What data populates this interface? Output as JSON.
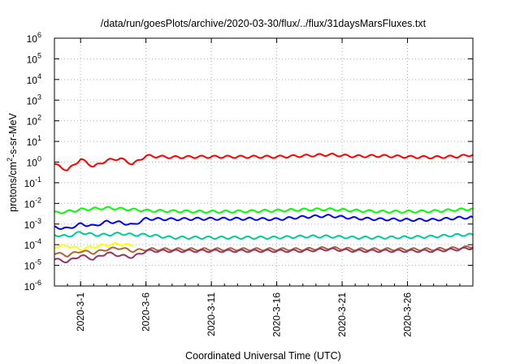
{
  "chart_data": {
    "type": "line",
    "title": "/data/run/goesPlots/archive/2020-03-30/flux/../flux/31daysMarsFluxes.txt",
    "xlabel": "Coordinated Universal Time (UTC)",
    "ylabel": {
      "base": "protons/cm",
      "sup": "2",
      "rest": "-s-sr-MeV"
    },
    "yscale": "log",
    "ylim": [
      1e-06,
      1000000.0
    ],
    "y_ticks": [
      {
        "base": "10",
        "exp": "-6",
        "value": 1e-06
      },
      {
        "base": "10",
        "exp": "-5",
        "value": 1e-05
      },
      {
        "base": "10",
        "exp": "-4",
        "value": 0.0001
      },
      {
        "base": "10",
        "exp": "-3",
        "value": 0.001
      },
      {
        "base": "10",
        "exp": "-2",
        "value": 0.01
      },
      {
        "base": "10",
        "exp": "-1",
        "value": 0.1
      },
      {
        "base": "10",
        "exp": "0",
        "value": 1
      },
      {
        "base": "10",
        "exp": "1",
        "value": 10
      },
      {
        "base": "10",
        "exp": "2",
        "value": 100
      },
      {
        "base": "10",
        "exp": "3",
        "value": 1000
      },
      {
        "base": "10",
        "exp": "4",
        "value": 10000
      },
      {
        "base": "10",
        "exp": "5",
        "value": 100000
      },
      {
        "base": "10",
        "exp": "6",
        "value": 1000000
      }
    ],
    "xlim": [
      "2020-02-28",
      "2020-03-31"
    ],
    "x_ticks": [
      "2020-3-1",
      "2020-3-6",
      "2020-3-11",
      "2020-3-16",
      "2020-3-21",
      "2020-3-26"
    ],
    "x_tick_dates": [
      "2020-03-01",
      "2020-03-06",
      "2020-03-11",
      "2020-03-16",
      "2020-03-21",
      "2020-03-26"
    ],
    "grid": true,
    "series": [
      {
        "color": "#ff0000",
        "x": [
          "2020-02-28",
          "2020-02-29",
          "2020-03-01",
          "2020-03-02",
          "2020-03-03",
          "2020-03-04",
          "2020-03-05",
          "2020-03-06",
          "2020-03-08",
          "2020-03-10",
          "2020-03-12",
          "2020-03-14",
          "2020-03-16",
          "2020-03-18",
          "2020-03-20",
          "2020-03-22",
          "2020-03-24",
          "2020-03-26",
          "2020-03-28",
          "2020-03-30",
          "2020-03-31"
        ],
        "values": [
          0.8,
          0.4,
          1.4,
          0.6,
          1.2,
          1.5,
          0.8,
          2.0,
          1.7,
          1.8,
          1.8,
          1.8,
          1.8,
          2.0,
          2.3,
          1.9,
          2.0,
          1.8,
          1.7,
          1.9,
          2.3
        ]
      },
      {
        "color": "#00ff00",
        "x": [
          "2020-02-28",
          "2020-02-29",
          "2020-03-01",
          "2020-03-02",
          "2020-03-03",
          "2020-03-04",
          "2020-03-05",
          "2020-03-06",
          "2020-03-08",
          "2020-03-10",
          "2020-03-12",
          "2020-03-14",
          "2020-03-16",
          "2020-03-18",
          "2020-03-20",
          "2020-03-22",
          "2020-03-24",
          "2020-03-26",
          "2020-03-28",
          "2020-03-30",
          "2020-03-31"
        ],
        "values": [
          0.0035,
          0.004,
          0.005,
          0.0055,
          0.006,
          0.0055,
          0.005,
          0.0045,
          0.0042,
          0.004,
          0.004,
          0.0042,
          0.0045,
          0.005,
          0.0052,
          0.0045,
          0.004,
          0.004,
          0.0042,
          0.005,
          0.0055
        ]
      },
      {
        "color": "#0000ff",
        "x": [
          "2020-02-28",
          "2020-02-29",
          "2020-03-01",
          "2020-03-02",
          "2020-03-03",
          "2020-03-04",
          "2020-03-05",
          "2020-03-06",
          "2020-03-08",
          "2020-03-10",
          "2020-03-12",
          "2020-03-14",
          "2020-03-16",
          "2020-03-18",
          "2020-03-20",
          "2020-03-22",
          "2020-03-24",
          "2020-03-26",
          "2020-03-28",
          "2020-03-30",
          "2020-03-31"
        ],
        "values": [
          0.0007,
          0.0006,
          0.001,
          0.0008,
          0.0013,
          0.0012,
          0.0009,
          0.0018,
          0.0017,
          0.0018,
          0.0018,
          0.0018,
          0.0017,
          0.0022,
          0.0025,
          0.0019,
          0.0017,
          0.0016,
          0.0016,
          0.002,
          0.0021
        ]
      },
      {
        "color": "#00cc99",
        "x": [
          "2020-02-28",
          "2020-02-29",
          "2020-03-01",
          "2020-03-02",
          "2020-03-03",
          "2020-03-04",
          "2020-03-05",
          "2020-03-06",
          "2020-03-08",
          "2020-03-10",
          "2020-03-12",
          "2020-03-14",
          "2020-03-16",
          "2020-03-18",
          "2020-03-20",
          "2020-03-22",
          "2020-03-24",
          "2020-03-26",
          "2020-03-28",
          "2020-03-30",
          "2020-03-31"
        ],
        "values": [
          0.0003,
          0.00025,
          0.0004,
          0.0003,
          0.0003,
          0.00035,
          0.0003,
          0.0003,
          0.00022,
          0.00022,
          0.00022,
          0.00022,
          0.00022,
          0.00025,
          0.00025,
          0.00022,
          0.00022,
          0.00023,
          0.00025,
          0.0003,
          0.0003
        ]
      },
      {
        "color": "#ffff00",
        "x": [
          "2020-02-28",
          "2020-02-29",
          "2020-03-01",
          "2020-03-02",
          "2020-03-03",
          "2020-03-04",
          "2020-03-05"
        ],
        "values": [
          8e-05,
          9e-05,
          6e-05,
          8e-05,
          0.0001,
          0.00011,
          9e-05
        ]
      },
      {
        "color": "#aa6633",
        "x": [
          "2020-02-28",
          "2020-02-29",
          "2020-03-01",
          "2020-03-02",
          "2020-03-03",
          "2020-03-04",
          "2020-03-05",
          "2020-03-06",
          "2020-03-08",
          "2020-03-10",
          "2020-03-12",
          "2020-03-14",
          "2020-03-16",
          "2020-03-18",
          "2020-03-20",
          "2020-03-22",
          "2020-03-24",
          "2020-03-26",
          "2020-03-28",
          "2020-03-30",
          "2020-03-31"
        ],
        "values": [
          4e-05,
          3e-05,
          5e-05,
          4e-05,
          6e-05,
          7e-05,
          5e-05,
          6e-05,
          6e-05,
          6e-05,
          6e-05,
          6e-05,
          6e-05,
          6e-05,
          7e-05,
          6e-05,
          6e-05,
          6e-05,
          6e-05,
          7e-05,
          8e-05
        ]
      },
      {
        "color": "#993366",
        "x": [
          "2020-02-28",
          "2020-02-29",
          "2020-03-01",
          "2020-03-02",
          "2020-03-03",
          "2020-03-04",
          "2020-03-05",
          "2020-03-06",
          "2020-03-08",
          "2020-03-10",
          "2020-03-12",
          "2020-03-14",
          "2020-03-16",
          "2020-03-18",
          "2020-03-20",
          "2020-03-22",
          "2020-03-24",
          "2020-03-26",
          "2020-03-28",
          "2020-03-30",
          "2020-03-31"
        ],
        "values": [
          2e-05,
          1.5e-05,
          3e-05,
          2e-05,
          4e-05,
          3e-05,
          2.5e-05,
          5e-05,
          5e-05,
          5e-05,
          5e-05,
          5e-05,
          5e-05,
          5e-05,
          6e-05,
          5e-05,
          5e-05,
          5e-05,
          5e-05,
          6e-05,
          7e-05
        ]
      }
    ]
  }
}
